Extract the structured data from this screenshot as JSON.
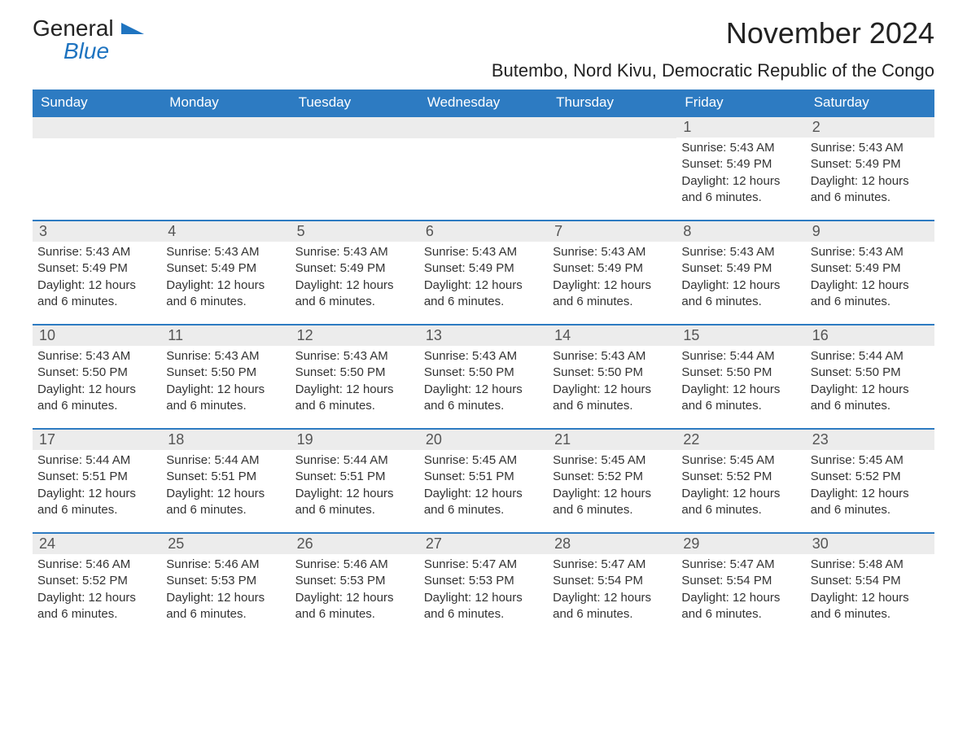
{
  "logo": {
    "text1": "General",
    "text2": "Blue"
  },
  "title": "November 2024",
  "location": "Butembo, Nord Kivu, Democratic Republic of the Congo",
  "colors": {
    "header_bg": "#2d7bc2",
    "header_text": "#ffffff",
    "row_border": "#2d7bc2",
    "daynum_bg": "#ececec",
    "daynum_text": "#555555",
    "body_text": "#333333",
    "logo_blue": "#1f74c0",
    "page_bg": "#ffffff"
  },
  "daysOfWeek": [
    "Sunday",
    "Monday",
    "Tuesday",
    "Wednesday",
    "Thursday",
    "Friday",
    "Saturday"
  ],
  "weeks": [
    [
      {
        "empty": true
      },
      {
        "empty": true
      },
      {
        "empty": true
      },
      {
        "empty": true
      },
      {
        "empty": true
      },
      {
        "num": "1",
        "sunrise": "Sunrise: 5:43 AM",
        "sunset": "Sunset: 5:49 PM",
        "daylight": "Daylight: 12 hours and 6 minutes."
      },
      {
        "num": "2",
        "sunrise": "Sunrise: 5:43 AM",
        "sunset": "Sunset: 5:49 PM",
        "daylight": "Daylight: 12 hours and 6 minutes."
      }
    ],
    [
      {
        "num": "3",
        "sunrise": "Sunrise: 5:43 AM",
        "sunset": "Sunset: 5:49 PM",
        "daylight": "Daylight: 12 hours and 6 minutes."
      },
      {
        "num": "4",
        "sunrise": "Sunrise: 5:43 AM",
        "sunset": "Sunset: 5:49 PM",
        "daylight": "Daylight: 12 hours and 6 minutes."
      },
      {
        "num": "5",
        "sunrise": "Sunrise: 5:43 AM",
        "sunset": "Sunset: 5:49 PM",
        "daylight": "Daylight: 12 hours and 6 minutes."
      },
      {
        "num": "6",
        "sunrise": "Sunrise: 5:43 AM",
        "sunset": "Sunset: 5:49 PM",
        "daylight": "Daylight: 12 hours and 6 minutes."
      },
      {
        "num": "7",
        "sunrise": "Sunrise: 5:43 AM",
        "sunset": "Sunset: 5:49 PM",
        "daylight": "Daylight: 12 hours and 6 minutes."
      },
      {
        "num": "8",
        "sunrise": "Sunrise: 5:43 AM",
        "sunset": "Sunset: 5:49 PM",
        "daylight": "Daylight: 12 hours and 6 minutes."
      },
      {
        "num": "9",
        "sunrise": "Sunrise: 5:43 AM",
        "sunset": "Sunset: 5:49 PM",
        "daylight": "Daylight: 12 hours and 6 minutes."
      }
    ],
    [
      {
        "num": "10",
        "sunrise": "Sunrise: 5:43 AM",
        "sunset": "Sunset: 5:50 PM",
        "daylight": "Daylight: 12 hours and 6 minutes."
      },
      {
        "num": "11",
        "sunrise": "Sunrise: 5:43 AM",
        "sunset": "Sunset: 5:50 PM",
        "daylight": "Daylight: 12 hours and 6 minutes."
      },
      {
        "num": "12",
        "sunrise": "Sunrise: 5:43 AM",
        "sunset": "Sunset: 5:50 PM",
        "daylight": "Daylight: 12 hours and 6 minutes."
      },
      {
        "num": "13",
        "sunrise": "Sunrise: 5:43 AM",
        "sunset": "Sunset: 5:50 PM",
        "daylight": "Daylight: 12 hours and 6 minutes."
      },
      {
        "num": "14",
        "sunrise": "Sunrise: 5:43 AM",
        "sunset": "Sunset: 5:50 PM",
        "daylight": "Daylight: 12 hours and 6 minutes."
      },
      {
        "num": "15",
        "sunrise": "Sunrise: 5:44 AM",
        "sunset": "Sunset: 5:50 PM",
        "daylight": "Daylight: 12 hours and 6 minutes."
      },
      {
        "num": "16",
        "sunrise": "Sunrise: 5:44 AM",
        "sunset": "Sunset: 5:50 PM",
        "daylight": "Daylight: 12 hours and 6 minutes."
      }
    ],
    [
      {
        "num": "17",
        "sunrise": "Sunrise: 5:44 AM",
        "sunset": "Sunset: 5:51 PM",
        "daylight": "Daylight: 12 hours and 6 minutes."
      },
      {
        "num": "18",
        "sunrise": "Sunrise: 5:44 AM",
        "sunset": "Sunset: 5:51 PM",
        "daylight": "Daylight: 12 hours and 6 minutes."
      },
      {
        "num": "19",
        "sunrise": "Sunrise: 5:44 AM",
        "sunset": "Sunset: 5:51 PM",
        "daylight": "Daylight: 12 hours and 6 minutes."
      },
      {
        "num": "20",
        "sunrise": "Sunrise: 5:45 AM",
        "sunset": "Sunset: 5:51 PM",
        "daylight": "Daylight: 12 hours and 6 minutes."
      },
      {
        "num": "21",
        "sunrise": "Sunrise: 5:45 AM",
        "sunset": "Sunset: 5:52 PM",
        "daylight": "Daylight: 12 hours and 6 minutes."
      },
      {
        "num": "22",
        "sunrise": "Sunrise: 5:45 AM",
        "sunset": "Sunset: 5:52 PM",
        "daylight": "Daylight: 12 hours and 6 minutes."
      },
      {
        "num": "23",
        "sunrise": "Sunrise: 5:45 AM",
        "sunset": "Sunset: 5:52 PM",
        "daylight": "Daylight: 12 hours and 6 minutes."
      }
    ],
    [
      {
        "num": "24",
        "sunrise": "Sunrise: 5:46 AM",
        "sunset": "Sunset: 5:52 PM",
        "daylight": "Daylight: 12 hours and 6 minutes."
      },
      {
        "num": "25",
        "sunrise": "Sunrise: 5:46 AM",
        "sunset": "Sunset: 5:53 PM",
        "daylight": "Daylight: 12 hours and 6 minutes."
      },
      {
        "num": "26",
        "sunrise": "Sunrise: 5:46 AM",
        "sunset": "Sunset: 5:53 PM",
        "daylight": "Daylight: 12 hours and 6 minutes."
      },
      {
        "num": "27",
        "sunrise": "Sunrise: 5:47 AM",
        "sunset": "Sunset: 5:53 PM",
        "daylight": "Daylight: 12 hours and 6 minutes."
      },
      {
        "num": "28",
        "sunrise": "Sunrise: 5:47 AM",
        "sunset": "Sunset: 5:54 PM",
        "daylight": "Daylight: 12 hours and 6 minutes."
      },
      {
        "num": "29",
        "sunrise": "Sunrise: 5:47 AM",
        "sunset": "Sunset: 5:54 PM",
        "daylight": "Daylight: 12 hours and 6 minutes."
      },
      {
        "num": "30",
        "sunrise": "Sunrise: 5:48 AM",
        "sunset": "Sunset: 5:54 PM",
        "daylight": "Daylight: 12 hours and 6 minutes."
      }
    ]
  ]
}
